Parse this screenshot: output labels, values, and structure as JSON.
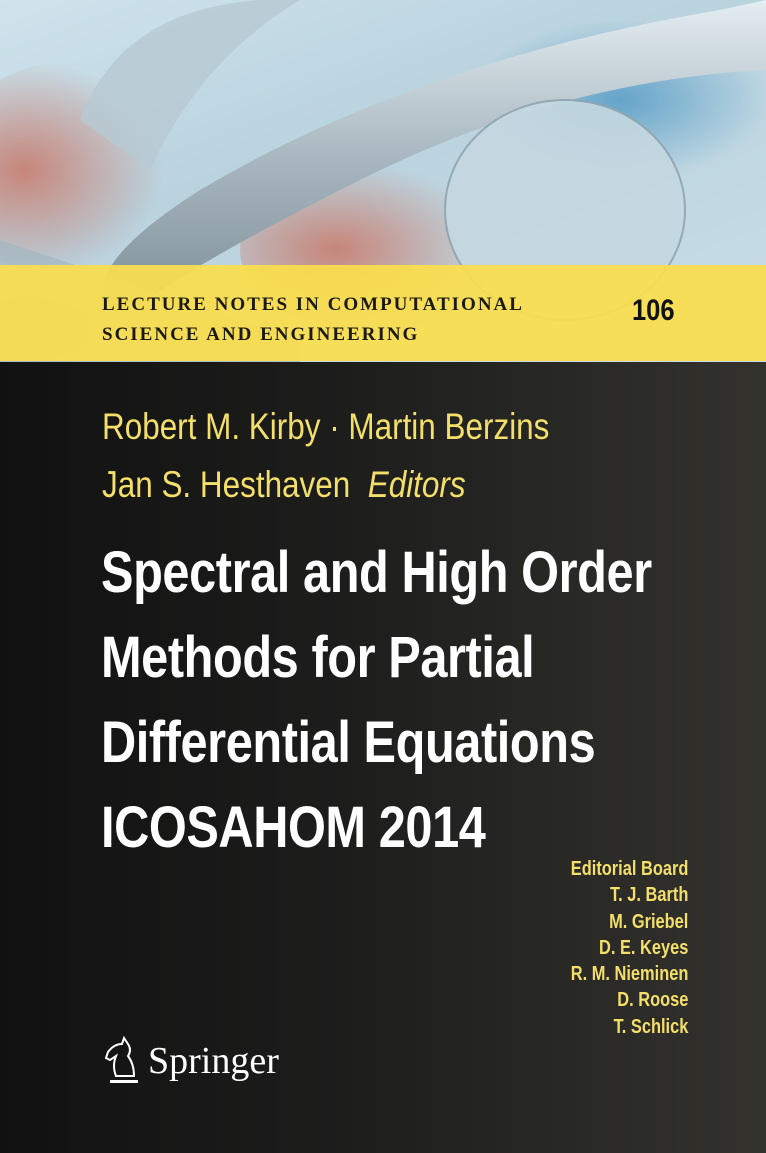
{
  "series": {
    "line1": "LECTURE NOTES IN COMPUTATIONAL",
    "line2": "SCIENCE AND ENGINEERING",
    "volume": "106"
  },
  "authors": {
    "line1": "Robert M. Kirby · Martin Berzins",
    "line2_name": "Jan S. Hesthaven",
    "line2_role": "Editors"
  },
  "title": [
    "Spectral and High Order",
    "Methods for Partial",
    "Differential Equations",
    "ICOSAHOM 2014"
  ],
  "editorial_board": {
    "heading": "Editorial Board",
    "members": [
      "T. J. Barth",
      "M. Griebel",
      "D. E. Keyes",
      "R. M. Nieminen",
      "D. Roose",
      "T. Schlick"
    ]
  },
  "publisher": {
    "name": "Springer",
    "icon": "knight-chess-piece-icon"
  },
  "colors": {
    "band": "#fade4e",
    "accent_text": "#f3df6a",
    "background": "#1a1a1a"
  }
}
